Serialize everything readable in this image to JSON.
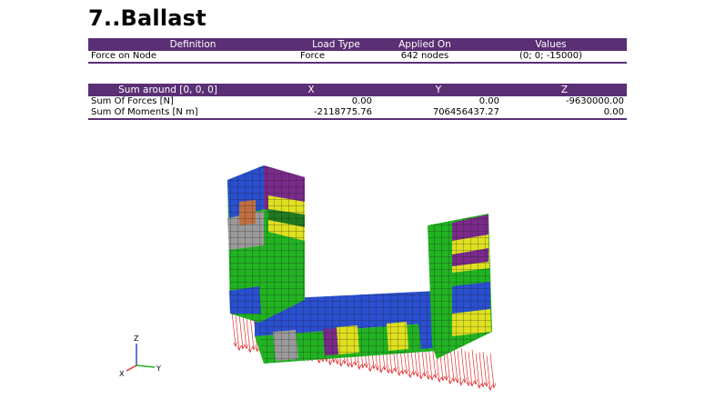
{
  "title": "7..Ballast",
  "load_table": {
    "headers": [
      "Definition",
      "Load Type",
      "Applied On",
      "Values"
    ],
    "rows": [
      [
        "Force on Node",
        "Force",
        "642 nodes",
        "(0; 0; -15000)"
      ]
    ]
  },
  "sum_table": {
    "headers": [
      "Sum around  [0, 0, 0]",
      "X",
      "Y",
      "Z"
    ],
    "rows": [
      [
        "Sum Of Forces [N]",
        "0.00",
        "0.00",
        "-9630000.00"
      ],
      [
        "Sum Of Moments [N m]",
        "-2118775.76",
        "706456437.27",
        "0.00"
      ]
    ]
  },
  "triad": {
    "z_label": "Z",
    "x_label": "X",
    "y_label": "Y"
  },
  "colors": {
    "header_bg": "#5b2f73",
    "mesh_green": "#22b322",
    "mesh_blue": "#2a4fd0",
    "mesh_purple": "#7a2a8a",
    "mesh_yellow": "#e0e020",
    "mesh_gray": "#9a9a9a",
    "force_arrows": "#e03030"
  }
}
